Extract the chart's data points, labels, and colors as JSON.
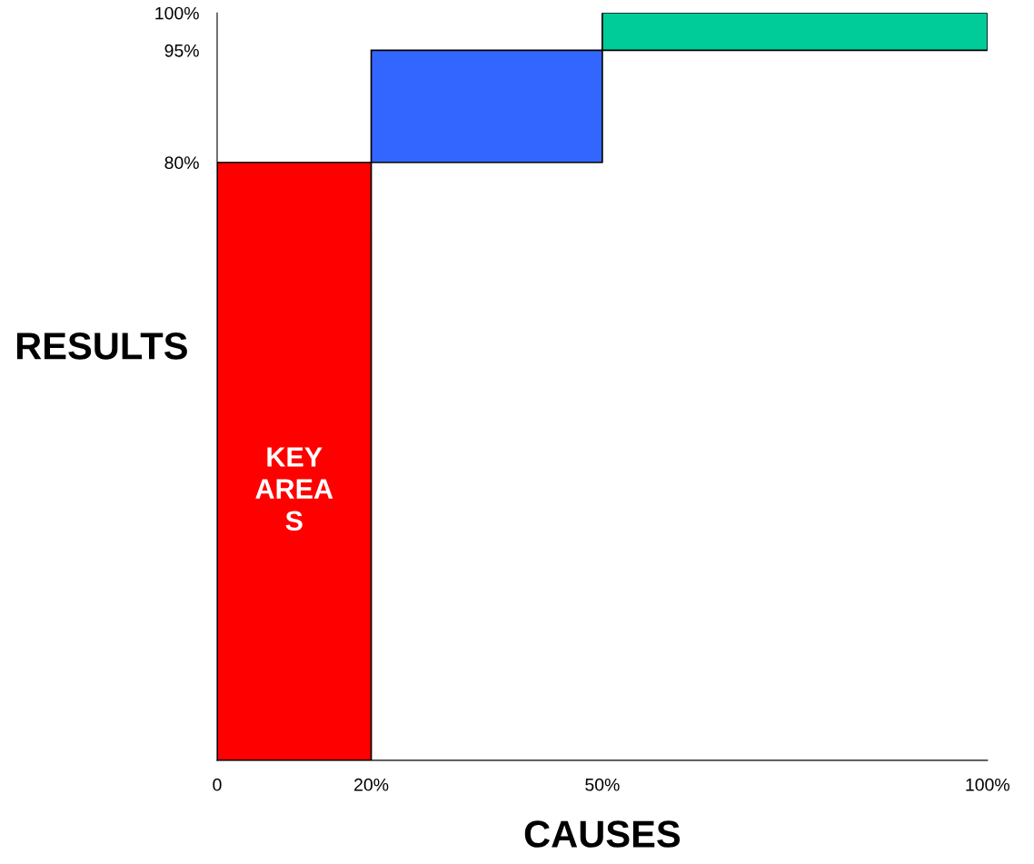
{
  "chart_data": {
    "type": "bar",
    "x": [
      10,
      35,
      75
    ],
    "values": [
      80,
      15,
      5
    ],
    "base": [
      0,
      80,
      95
    ],
    "colors": [
      "#ff0000",
      "#3366ff",
      "#00cc99"
    ],
    "xlabel": "CAUSES",
    "ylabel": "RESULTS",
    "xlim": [
      0,
      100
    ],
    "ylim": [
      0,
      100
    ],
    "xticks": [
      0,
      {
        "value": 20,
        "label": "20%"
      },
      {
        "value": 50,
        "label": "50%"
      },
      {
        "value": 100,
        "label": "100%"
      }
    ],
    "yticks": [
      {
        "value": 80,
        "label": "80%"
      },
      {
        "value": 95,
        "label": "95%"
      },
      {
        "value": 100,
        "label": "100%"
      }
    ],
    "annotations": [
      "KEY\nAREA\nS"
    ],
    "grid": false,
    "legend": false
  }
}
